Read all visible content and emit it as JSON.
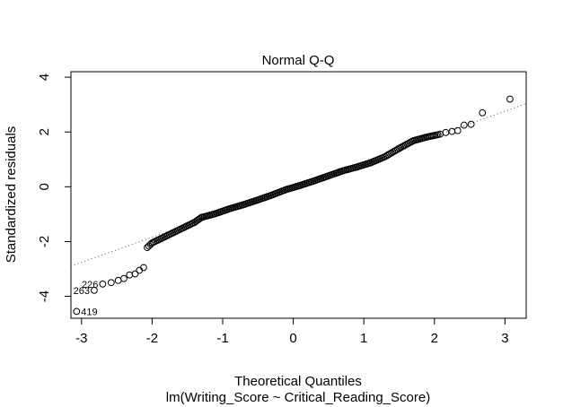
{
  "chart_data": {
    "type": "scatter",
    "title": "Normal Q-Q",
    "xlabel": "Theoretical Quantiles",
    "subtitle": "lm(Writing_Score ~ Critical_Reading_Score)",
    "ylabel": "Standardized residuals",
    "xlim": [
      -3.15,
      3.3
    ],
    "ylim": [
      -4.8,
      4.2
    ],
    "x_ticks": [
      -3,
      -2,
      -1,
      0,
      1,
      2,
      3
    ],
    "y_ticks": [
      -4,
      -2,
      0,
      2,
      4
    ],
    "x_tick_labels": [
      "-3",
      "-2",
      "-1",
      "0",
      "1",
      "2",
      "3"
    ],
    "y_tick_labels": [
      "-4",
      "-2",
      "0",
      "2",
      "4"
    ],
    "reference_line": {
      "style": "dotted",
      "intercept": 0.0,
      "slope": 0.92
    },
    "labeled_points": [
      {
        "label": "419",
        "x": -3.07,
        "y": -4.55
      },
      {
        "label": "263",
        "x": -2.82,
        "y": -3.78
      },
      {
        "label": "226",
        "x": -2.7,
        "y": -3.55
      }
    ],
    "tail_points": [
      {
        "x": -3.07,
        "y": -4.55
      },
      {
        "x": -2.82,
        "y": -3.78
      },
      {
        "x": -2.7,
        "y": -3.55
      },
      {
        "x": -2.58,
        "y": -3.5
      },
      {
        "x": -2.48,
        "y": -3.42
      },
      {
        "x": -2.4,
        "y": -3.35
      },
      {
        "x": -2.32,
        "y": -3.22
      },
      {
        "x": -2.24,
        "y": -3.18
      },
      {
        "x": -2.18,
        "y": -3.05
      },
      {
        "x": -2.12,
        "y": -2.95
      },
      {
        "x": 2.08,
        "y": 1.92
      },
      {
        "x": 2.16,
        "y": 1.98
      },
      {
        "x": 2.25,
        "y": 2.02
      },
      {
        "x": 2.33,
        "y": 2.05
      },
      {
        "x": 2.42,
        "y": 2.25
      },
      {
        "x": 2.52,
        "y": 2.28
      },
      {
        "x": 2.68,
        "y": 2.7
      },
      {
        "x": 3.07,
        "y": 3.2
      }
    ],
    "body_segments": [
      {
        "x": -2.07,
        "y": -2.22
      },
      {
        "x": -2.0,
        "y": -2.05
      },
      {
        "x": -1.8,
        "y": -1.8
      },
      {
        "x": -1.6,
        "y": -1.55
      },
      {
        "x": -1.4,
        "y": -1.3
      },
      {
        "x": -1.3,
        "y": -1.12
      },
      {
        "x": -1.1,
        "y": -0.98
      },
      {
        "x": -0.9,
        "y": -0.8
      },
      {
        "x": -0.7,
        "y": -0.65
      },
      {
        "x": -0.5,
        "y": -0.48
      },
      {
        "x": -0.3,
        "y": -0.3
      },
      {
        "x": -0.1,
        "y": -0.1
      },
      {
        "x": 0.1,
        "y": 0.05
      },
      {
        "x": 0.3,
        "y": 0.22
      },
      {
        "x": 0.5,
        "y": 0.4
      },
      {
        "x": 0.7,
        "y": 0.58
      },
      {
        "x": 0.9,
        "y": 0.72
      },
      {
        "x": 1.1,
        "y": 0.88
      },
      {
        "x": 1.3,
        "y": 1.1
      },
      {
        "x": 1.5,
        "y": 1.4
      },
      {
        "x": 1.7,
        "y": 1.68
      },
      {
        "x": 1.9,
        "y": 1.82
      },
      {
        "x": 2.05,
        "y": 1.9
      }
    ],
    "grid": false,
    "legend": "none"
  }
}
